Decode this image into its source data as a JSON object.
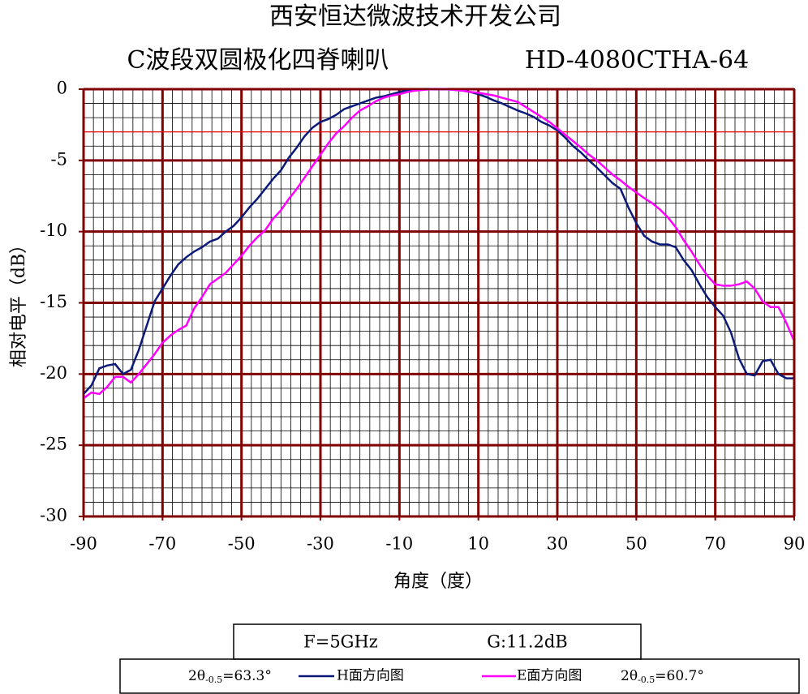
{
  "chart_data": {
    "type": "line",
    "title": "西安恒达微波技术开发公司",
    "subtitle": "C波段双圆极化四脊喇叭",
    "model": "HD-4080CTHA-64",
    "xlabel": "角度（度）",
    "ylabel": "相对电平（dB）",
    "xlim": [
      -90,
      90
    ],
    "xticks": [
      -90,
      -70,
      -50,
      -30,
      -10,
      10,
      30,
      50,
      70,
      90
    ],
    "ylim": [
      -30,
      0
    ],
    "yticks": [
      0,
      -5,
      -10,
      -15,
      -20,
      -25,
      -30
    ],
    "grid": true,
    "grid_color": "#800000",
    "minor_grid": {
      "x_step": 2.5,
      "y_step": 1,
      "color": "#000000"
    },
    "reference_line": {
      "value": -3,
      "color": "#ff0000"
    },
    "x": [
      -90,
      -88,
      -86,
      -84,
      -82,
      -80,
      -78,
      -76,
      -74,
      -72,
      -70,
      -68,
      -66,
      -64,
      -62,
      -60,
      -58,
      -56,
      -54,
      -52,
      -50,
      -48,
      -46,
      -44,
      -42,
      -40,
      -38,
      -36,
      -34,
      -32,
      -30,
      -28,
      -26,
      -24,
      -22,
      -20,
      -18,
      -16,
      -14,
      -12,
      -10,
      -8,
      -6,
      -4,
      -2,
      0,
      2,
      4,
      6,
      8,
      10,
      12,
      14,
      16,
      18,
      20,
      22,
      24,
      26,
      28,
      30,
      32,
      34,
      36,
      38,
      40,
      42,
      44,
      46,
      48,
      50,
      52,
      54,
      56,
      58,
      60,
      62,
      64,
      66,
      68,
      70,
      72,
      74,
      76,
      78,
      80,
      82,
      84,
      86,
      88,
      90
    ],
    "series": [
      {
        "name": "H面方向图",
        "color": "#0b1a78",
        "values": [
          -21.4,
          -20.8,
          -19.6,
          -19.4,
          -19.3,
          -20,
          -19.7,
          -18.3,
          -16.6,
          -14.9,
          -14,
          -13.1,
          -12.3,
          -11.8,
          -11.4,
          -11.1,
          -10.7,
          -10.5,
          -10,
          -9.6,
          -9,
          -8.3,
          -7.7,
          -7,
          -6.3,
          -5.7,
          -4.8,
          -4.1,
          -3.3,
          -2.7,
          -2.3,
          -2.1,
          -1.8,
          -1.4,
          -1.2,
          -1,
          -0.8,
          -0.6,
          -0.5,
          -0.35,
          -0.2,
          -0.1,
          -0.05,
          0,
          0,
          0,
          0,
          -0.05,
          -0.1,
          -0.2,
          -0.35,
          -0.55,
          -0.8,
          -1,
          -1.25,
          -1.5,
          -1.7,
          -1.95,
          -2.3,
          -2.55,
          -2.9,
          -3.4,
          -4,
          -4.45,
          -5,
          -5.5,
          -6.05,
          -6.6,
          -7,
          -8.3,
          -9.4,
          -10.3,
          -10.7,
          -10.9,
          -10.9,
          -11.1,
          -12,
          -12.7,
          -13.7,
          -14.6,
          -15.3,
          -15.9,
          -17.1,
          -18.9,
          -20,
          -20.1,
          -19.1,
          -19,
          -20,
          -20.3,
          -20.3
        ]
      },
      {
        "name": "E面方向图",
        "color": "#ff00ff",
        "values": [
          -21.7,
          -21.3,
          -21.4,
          -20.9,
          -20.2,
          -20.2,
          -20.6,
          -20,
          -19.3,
          -18.6,
          -17.8,
          -17.3,
          -16.9,
          -16.6,
          -15.4,
          -14.6,
          -13.7,
          -13.3,
          -12.9,
          -12.3,
          -11.7,
          -11,
          -10.4,
          -9.9,
          -9.1,
          -8.5,
          -7.7,
          -7,
          -6.2,
          -5.4,
          -4.6,
          -3.8,
          -3.1,
          -2.6,
          -2,
          -1.5,
          -1.2,
          -0.85,
          -0.6,
          -0.45,
          -0.35,
          -0.2,
          -0.1,
          -0.05,
          0,
          0,
          0,
          -0.05,
          -0.1,
          -0.2,
          -0.25,
          -0.35,
          -0.45,
          -0.6,
          -0.75,
          -0.9,
          -1.25,
          -1.6,
          -1.95,
          -2.3,
          -2.75,
          -3.2,
          -3.65,
          -4.1,
          -4.6,
          -5,
          -5.5,
          -6,
          -6.4,
          -6.85,
          -7.25,
          -7.65,
          -8,
          -8.45,
          -9,
          -9.7,
          -10.6,
          -11.4,
          -12.3,
          -13.1,
          -13.7,
          -13.8,
          -13.8,
          -13.7,
          -13.5,
          -14,
          -14.9,
          -15.3,
          -15.3,
          -16.4,
          -17.7
        ]
      }
    ],
    "info": {
      "frequency": "F=5GHz",
      "gain": "G:11.2dB"
    },
    "beamwidth": [
      {
        "prefix": "2θ",
        "sub": "-0.5",
        "text": "=63.3°"
      },
      {
        "prefix": "2θ",
        "sub": "-0.5",
        "text": "=60.7°"
      }
    ]
  }
}
